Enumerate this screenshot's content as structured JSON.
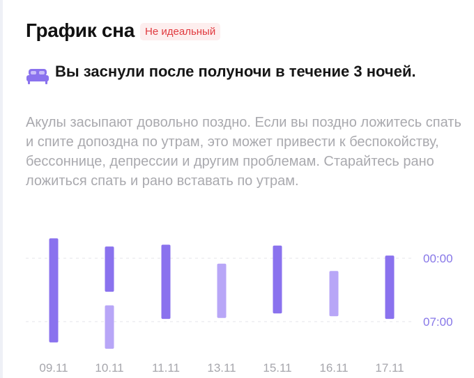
{
  "header": {
    "title": "График сна",
    "badge": "Не идеальный"
  },
  "headline": {
    "icon": "bed-icon",
    "text": "Вы заснули после полуночи в течение 3 ночей."
  },
  "description": "Акулы засыпают довольно поздно. Если вы поздно ложитесь спать и спите допоздна по утрам, это может привести к беспокойству, бессоннице, депрессии и другим проблемам. Старайтесь рано ложиться спать и рано вставать по утрам.",
  "colors": {
    "accent": "#8a72ee",
    "accent_light": "#b8a6f7",
    "badge_bg": "#fdeeee",
    "badge_text": "#e0393e",
    "gridline": "#e4e4ea"
  },
  "chart_data": {
    "type": "range-bar",
    "y_axis_ticks": [
      "00:00",
      "07:00"
    ],
    "y_axis_hours": [
      0,
      7
    ],
    "categories": [
      "09.11",
      "10.11",
      "11.11",
      "13.11",
      "15.11",
      "16.11",
      "17.11"
    ],
    "sessions": [
      {
        "day": "09.11",
        "start": -2.2,
        "end": 9.3,
        "shade": "dark"
      },
      {
        "day": "10.11",
        "start": -1.3,
        "end": 3.7,
        "shade": "dark"
      },
      {
        "day": "10.11",
        "start": 5.2,
        "end": 10.0,
        "shade": "light"
      },
      {
        "day": "11.11",
        "start": -1.5,
        "end": 6.7,
        "shade": "dark"
      },
      {
        "day": "13.11",
        "start": 0.6,
        "end": 6.6,
        "shade": "light"
      },
      {
        "day": "15.11",
        "start": -1.4,
        "end": 6.1,
        "shade": "dark"
      },
      {
        "day": "16.11",
        "start": 1.4,
        "end": 6.4,
        "shade": "light"
      },
      {
        "day": "17.11",
        "start": -0.3,
        "end": 6.7,
        "shade": "dark"
      }
    ]
  }
}
